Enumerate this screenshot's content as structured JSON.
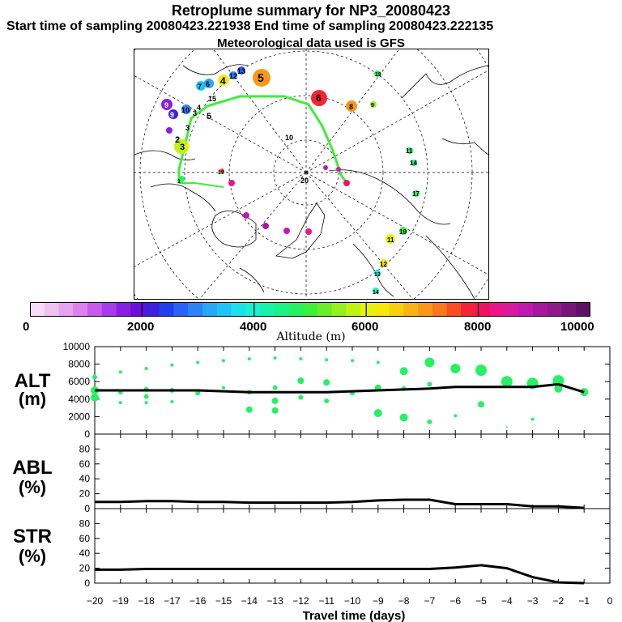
{
  "header": {
    "title": "Retroplume summary for NP3_20080423",
    "sampling": "Start time of sampling 20080423.221938     End time of sampling 20080423.222135",
    "met": "Meteorological data used is GFS"
  },
  "colorbar": {
    "title": "Altitude (m)",
    "labels": [
      "0",
      "2000",
      "4000",
      "6000",
      "8000",
      "10000"
    ],
    "colors": [
      "#f6dcf6",
      "#f0c2f2",
      "#e7a3f0",
      "#dc82ee",
      "#c85aec",
      "#a83ae8",
      "#8c1ee4",
      "#6a10d8",
      "#4020e0",
      "#2040f0",
      "#2a62f6",
      "#2a84f8",
      "#28a6f8",
      "#20c4f4",
      "#1ee0ec",
      "#18f0d0",
      "#18f2ac",
      "#1cf288",
      "#26f064",
      "#3eee3a",
      "#6aee28",
      "#96f01e",
      "#c2f214",
      "#e6f20c",
      "#f6e80a",
      "#f8d00e",
      "#f8b414",
      "#f89818",
      "#f8781e",
      "#f85022",
      "#f42438",
      "#f01460",
      "#e81686",
      "#d81aa0",
      "#c01ab0",
      "#a8189e",
      "#901a8c",
      "#781678",
      "#5e1264"
    ]
  },
  "map": {
    "numbers": [
      "1",
      "2",
      "3",
      "4",
      "5",
      "6",
      "7",
      "8",
      "9",
      "10",
      "11",
      "12",
      "13",
      "14",
      "15",
      "16",
      "17",
      "18",
      "19",
      "20"
    ]
  },
  "chart_data": [
    {
      "type": "scatter",
      "name": "ALT",
      "ylabel": "ALT\n(m)",
      "ylabel_line1": "ALT",
      "ylabel_line2": "(m)",
      "ylim": [
        0,
        10000
      ],
      "yticks": [
        "0",
        "2000",
        "4000",
        "6000",
        "8000",
        "10000"
      ],
      "x": [
        -20,
        -19,
        -18,
        -17,
        -16,
        -15,
        -14,
        -13,
        -12,
        -11,
        -10,
        -9,
        -8,
        -7,
        -6,
        -5,
        -4,
        -3,
        -2,
        -1
      ],
      "mean_line": [
        5000,
        5000,
        5000,
        5000,
        5000,
        4900,
        4800,
        4800,
        4800,
        4800,
        4900,
        5000,
        5100,
        5200,
        5400,
        5400,
        5400,
        5400,
        5700,
        4800
      ],
      "points": {
        "x": [
          -20,
          -20,
          -20,
          -19,
          -19,
          -19,
          -18,
          -18,
          -18,
          -18,
          -17,
          -17,
          -17,
          -16,
          -16,
          -15,
          -15,
          -14,
          -14,
          -14,
          -13,
          -13,
          -13,
          -13,
          -12,
          -12,
          -12,
          -11,
          -11,
          -11,
          -10,
          -10,
          -9,
          -9,
          -9,
          -8,
          -8,
          -8,
          -7,
          -7,
          -7,
          -6,
          -6,
          -5,
          -5,
          -4,
          -4,
          -3,
          -3,
          -2,
          -2,
          -1
        ],
        "y": [
          6500,
          5000,
          4200,
          7100,
          4800,
          3600,
          7500,
          5100,
          4300,
          3600,
          7900,
          5000,
          3700,
          8200,
          4700,
          8400,
          5300,
          8600,
          4800,
          2800,
          8700,
          5300,
          3800,
          2700,
          8600,
          6100,
          4200,
          8500,
          5900,
          3800,
          8400,
          4700,
          8200,
          5300,
          2400,
          7200,
          5200,
          1900,
          8200,
          5700,
          1400,
          7500,
          2100,
          7300,
          3400,
          6000,
          800,
          5800,
          1700,
          6100,
          5200,
          4800
        ],
        "size": [
          3,
          5,
          5,
          2,
          3,
          2,
          2,
          3,
          3,
          2,
          2,
          3,
          2,
          2,
          3,
          2,
          2,
          2,
          3,
          4,
          2,
          3,
          4,
          4,
          2,
          4,
          3,
          2,
          4,
          3,
          2,
          3,
          2,
          4,
          5,
          5,
          3,
          5,
          6,
          3,
          3,
          6,
          2,
          7,
          4,
          7,
          1,
          7,
          2,
          7,
          5,
          5
        ]
      }
    },
    {
      "type": "line",
      "name": "ABL",
      "ylabel_line1": "ABL",
      "ylabel_line2": "(%)",
      "ylim": [
        0,
        100
      ],
      "yticks": [
        "0",
        "20",
        "40",
        "60",
        "80"
      ],
      "x": [
        -20,
        -19,
        -18,
        -17,
        -16,
        -15,
        -14,
        -13,
        -12,
        -11,
        -10,
        -9,
        -8,
        -7,
        -6,
        -5,
        -4,
        -3,
        -2,
        -1
      ],
      "values": [
        9,
        9,
        10,
        10,
        9,
        9,
        8,
        8,
        8,
        8,
        9,
        11,
        12,
        12,
        6,
        6,
        6,
        3,
        3,
        1
      ]
    },
    {
      "type": "line",
      "name": "STR",
      "ylabel_line1": "STR",
      "ylabel_line2": "(%)",
      "ylim": [
        0,
        100
      ],
      "yticks": [
        "0",
        "20",
        "40",
        "60",
        "80"
      ],
      "x": [
        -20,
        -19,
        -18,
        -17,
        -16,
        -15,
        -14,
        -13,
        -12,
        -11,
        -10,
        -9,
        -8,
        -7,
        -6,
        -5,
        -4,
        -3,
        -2,
        -1
      ],
      "values": [
        18,
        18,
        19,
        19,
        19,
        19,
        19,
        19,
        19,
        19,
        19,
        19,
        19,
        19,
        21,
        24,
        20,
        8,
        1,
        0
      ],
      "xlabel": "Travel time (days)",
      "xticks": [
        "−20",
        "−19",
        "−18",
        "−17",
        "−16",
        "−15",
        "−14",
        "−13",
        "−12",
        "−11",
        "−10",
        "−9",
        "−8",
        "−7",
        "−6",
        "−5",
        "−4",
        "−3",
        "−2",
        "−1",
        "0"
      ]
    }
  ]
}
